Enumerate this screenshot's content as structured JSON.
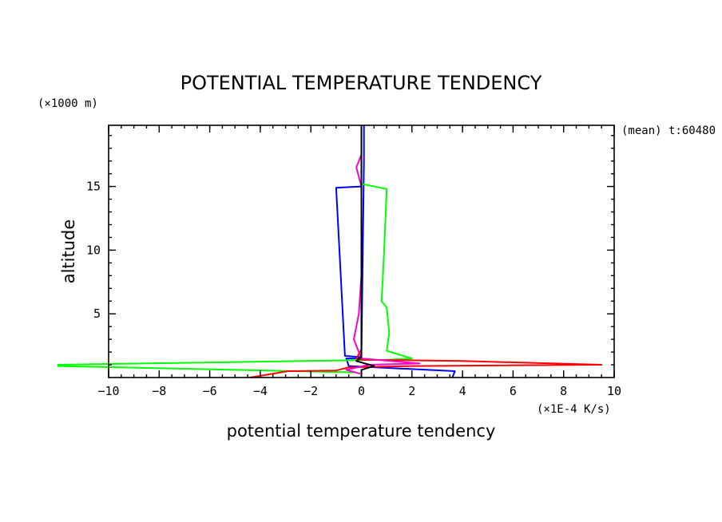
{
  "chart_data": {
    "type": "line",
    "title": "POTENTIAL TEMPERATURE TENDENCY",
    "xlabel": "potential temperature tendency",
    "xunits": "(×1E-4 K/s)",
    "ylabel": "altitude",
    "yunits": "(×1000 m)",
    "annotation": "(mean) t:60480",
    "xlim": [
      -10,
      10
    ],
    "ylim": [
      0,
      19.8
    ],
    "xticks": [
      -10,
      -8,
      -6,
      -4,
      -2,
      0,
      2,
      4,
      6,
      8,
      10
    ],
    "xtick_labels": [
      "−10",
      "−8",
      "−6",
      "−4",
      "−2",
      "0",
      "2",
      "4",
      "6",
      "8",
      "10"
    ],
    "yticks": [
      5,
      10,
      15
    ],
    "ytick_labels": [
      "5",
      "10",
      "15"
    ],
    "grid": false,
    "series": [
      {
        "color": "#0000ff",
        "points": [
          [
            3.6,
            0
          ],
          [
            3.7,
            0.5
          ],
          [
            -0.5,
            0.9
          ],
          [
            -0.6,
            1.5
          ],
          [
            0,
            1.5
          ],
          [
            0,
            15.0
          ],
          [
            -1,
            14.9
          ],
          [
            -0.65,
            1.7
          ],
          [
            0,
            1.6
          ],
          [
            0.1,
            17
          ],
          [
            0.1,
            19.8
          ]
        ]
      },
      {
        "color": "#00ff00",
        "points": [
          [
            -0.2,
            0.4
          ],
          [
            -12,
            0.9
          ],
          [
            -12,
            1.0
          ],
          [
            1.0,
            1.4
          ],
          [
            2.0,
            1.5
          ],
          [
            1.0,
            2.1
          ],
          [
            1.1,
            3.5
          ],
          [
            1.0,
            5.5
          ],
          [
            0.8,
            6.0
          ],
          [
            0.9,
            10.0
          ],
          [
            1.0,
            14.8
          ],
          [
            0,
            15.2
          ],
          [
            0,
            17
          ],
          [
            0,
            19.8
          ]
        ]
      },
      {
        "color": "#ff0000",
        "points": [
          [
            -4.4,
            0
          ],
          [
            -2.9,
            0.5
          ],
          [
            -1.0,
            0.55
          ],
          [
            -0.5,
            0.8
          ],
          [
            2.0,
            0.9
          ],
          [
            9.5,
            1.0
          ],
          [
            4.0,
            1.3
          ],
          [
            0,
            1.4
          ],
          [
            -0.2,
            1.5
          ],
          [
            0,
            2.2
          ],
          [
            0,
            19.8
          ]
        ]
      },
      {
        "color": "#ff00cc",
        "points": [
          [
            -0.05,
            0.3
          ],
          [
            -0.6,
            0.6
          ],
          [
            0.3,
            1.0
          ],
          [
            2.3,
            1.1
          ],
          [
            0,
            1.5
          ],
          [
            -0.3,
            3.0
          ],
          [
            -0.1,
            5.0
          ],
          [
            0,
            8
          ],
          [
            0,
            15
          ],
          [
            -0.2,
            16.5
          ],
          [
            0,
            17.5
          ],
          [
            0,
            19.0
          ]
        ]
      },
      {
        "color": "#000000",
        "points": [
          [
            0,
            0
          ],
          [
            0,
            0.6
          ],
          [
            0.5,
            0.9
          ],
          [
            -0.2,
            1.3
          ],
          [
            0,
            1.6
          ],
          [
            0,
            6
          ],
          [
            0,
            15
          ],
          [
            0,
            18
          ],
          [
            0,
            19.8
          ]
        ]
      }
    ]
  }
}
